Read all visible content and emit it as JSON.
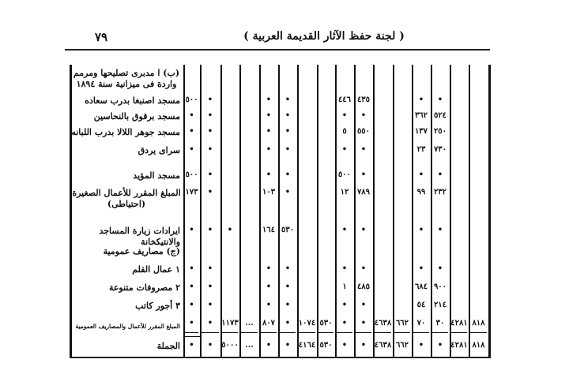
{
  "page_number": "٧٩",
  "running_head": "( لجنة حفظ الآثار القديمة العربية )",
  "table": {
    "rows": [
      {
        "label": "(ب) ا مدبرى تصليحها ومرمم واردة فى ميزانية سنة ١٨٩٤",
        "values": [
          null,
          null,
          null,
          null,
          null,
          null,
          null,
          null,
          null,
          null,
          null,
          null,
          null,
          null,
          null,
          null
        ]
      },
      {
        "label": "مسجد اصنبغا بدرب سعاده",
        "values": [
          "٥٠٠",
          "•",
          null,
          null,
          "•",
          "•",
          null,
          null,
          "٤٤٦",
          "٤٣٥",
          null,
          null,
          "•",
          "•",
          null,
          null
        ]
      },
      {
        "label": "مسجد برقوق بالنحاسين",
        "values": [
          "•",
          "•",
          null,
          null,
          "•",
          "•",
          null,
          null,
          "•",
          "•",
          null,
          null,
          "٣٦٢",
          "٥٢٤",
          null,
          null
        ]
      },
      {
        "label": "مسجد جوهر اللالا بدرب اللبانه",
        "values": [
          "•",
          "•",
          null,
          null,
          "•",
          "•",
          null,
          null,
          "٥",
          "٥٥٠",
          null,
          null,
          "١٣٧",
          "٢٥٠",
          null,
          null
        ]
      },
      {
        "label": "سراى يردق",
        "values": [
          "•",
          "•",
          null,
          null,
          "•",
          "•",
          null,
          null,
          "•",
          "•",
          null,
          null,
          "٢٣",
          "٧٣٠",
          null,
          null
        ]
      },
      {
        "label": "مسجد المؤيد",
        "values": [
          "٥٠٠",
          "•",
          null,
          null,
          "•",
          "•",
          null,
          null,
          "٥٠٠",
          "•",
          null,
          null,
          "•",
          "•",
          null,
          null
        ]
      },
      {
        "label": "المبلغ المقرر للأعمال الصغيرة (احتياطى)",
        "values": [
          "١٧٣",
          "•",
          null,
          null,
          "١٠٣",
          "•",
          null,
          null,
          "١٢",
          "٧٨٩",
          null,
          null,
          "٩٩",
          "٢٣٢",
          null,
          null
        ]
      },
      {
        "label": "ايرادات زيارة المساجد والانتيكخانة",
        "values": [
          "•",
          "•",
          "•",
          null,
          "١٦٤",
          "٥٣٠",
          null,
          null,
          "•",
          "•",
          null,
          null,
          "•",
          "•",
          null,
          null
        ]
      },
      {
        "label": "(ج) مصاريف عمومية",
        "values": [
          null,
          null,
          null,
          null,
          null,
          null,
          null,
          null,
          null,
          null,
          null,
          null,
          null,
          null,
          null,
          null
        ]
      },
      {
        "label": "١ عمال القلم",
        "values": [
          "•",
          "•",
          null,
          null,
          "•",
          "•",
          null,
          null,
          "•",
          "•",
          null,
          null,
          "•",
          "•",
          null,
          null
        ]
      },
      {
        "label": "٢ مصروفات متنوعة",
        "values": [
          "•",
          "•",
          null,
          null,
          "•",
          "•",
          null,
          null,
          "١",
          "٤٨٥",
          null,
          null,
          "٦٨٤",
          "٩٠٠",
          null,
          null
        ]
      },
      {
        "label": "٣ أجور كاتب",
        "values": [
          "•",
          "•",
          null,
          null,
          "•",
          "•",
          null,
          null,
          "•",
          "•",
          null,
          null,
          "٥٤",
          "٢١٤",
          null,
          null
        ]
      },
      {
        "label": "المبلغ المقرر للأعمال والمصاريف العمومية",
        "values": [
          "•",
          "•",
          "١١٧٣",
          "...",
          "٨٠٧",
          "•",
          "١٠٧٤",
          "٥٣٠",
          "•",
          "•",
          "٤٦٣٨",
          "٦٦٢",
          "٧٠",
          "٣٠",
          "٤٢٨١",
          "٨١٨"
        ]
      },
      {
        "label": "الجملة",
        "values": [
          "•",
          "•",
          "٥٠٠٠",
          "...",
          "•",
          "•",
          "٤١٦٤",
          "٥٣٠",
          "•",
          "•",
          "٤٦٣٨",
          "٦٦٢",
          "•",
          "•",
          "٤٢٨١",
          "٨١٨"
        ]
      }
    ]
  }
}
